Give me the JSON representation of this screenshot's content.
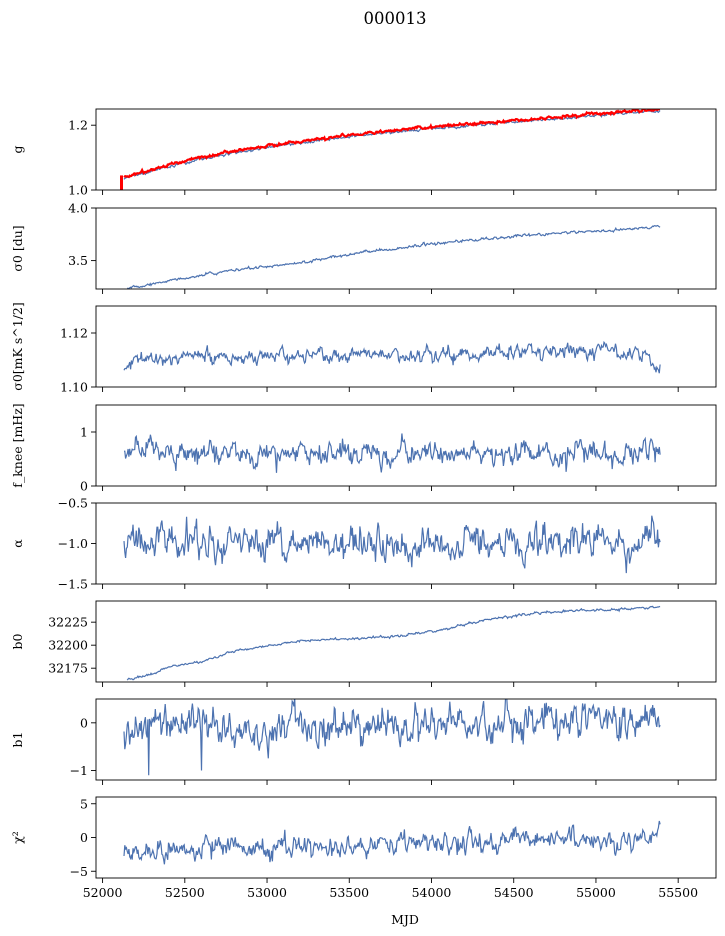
{
  "figure": {
    "title": "000013",
    "xlabel": "MJD"
  },
  "chart_data": [
    {
      "type": "line",
      "ylabel": "g",
      "ylim": [
        1.0,
        1.25
      ],
      "yticks": [
        "1.0",
        "1.2"
      ],
      "ytick_values": [
        1.0,
        1.2
      ],
      "xlim": [
        51960,
        55730
      ],
      "xrange": [
        52130,
        55390
      ],
      "trend": [
        [
          52130,
          1.04
        ],
        [
          52500,
          1.09
        ],
        [
          52800,
          1.12
        ],
        [
          53200,
          1.15
        ],
        [
          53600,
          1.175
        ],
        [
          54000,
          1.195
        ],
        [
          54500,
          1.215
        ],
        [
          55000,
          1.235
        ],
        [
          55390,
          1.25
        ]
      ],
      "noise": 0.002,
      "series": [
        {
          "color": "#4c72b0",
          "offset": -0.005
        },
        {
          "color": "#ff0000",
          "offset": 0.0,
          "spike": {
            "x": 52115,
            "y_low": 1.0,
            "y_high": 1.045
          }
        }
      ]
    },
    {
      "type": "line",
      "ylabel": "σ0 [du]",
      "ylim": [
        3.23,
        4.0
      ],
      "yticks": [
        "3.5",
        "4.0"
      ],
      "ytick_values": [
        3.5,
        4.0
      ],
      "xlim": [
        51960,
        55730
      ],
      "xrange": [
        52150,
        55390
      ],
      "trend": [
        [
          52150,
          3.24
        ],
        [
          52500,
          3.33
        ],
        [
          52800,
          3.41
        ],
        [
          53200,
          3.48
        ],
        [
          53600,
          3.58
        ],
        [
          54000,
          3.66
        ],
        [
          54500,
          3.73
        ],
        [
          55000,
          3.78
        ],
        [
          55390,
          3.82
        ]
      ],
      "noise": 0.006,
      "series": [
        {
          "color": "#4c72b0"
        }
      ]
    },
    {
      "type": "line",
      "ylabel": "σ0[mK s^1/2]",
      "ylim": [
        1.1,
        1.13
      ],
      "yticks": [
        "1.10",
        "1.12"
      ],
      "ytick_values": [
        1.1,
        1.12
      ],
      "xlim": [
        51960,
        55730
      ],
      "xrange": [
        52130,
        55390
      ],
      "trend": [
        [
          52130,
          1.106
        ],
        [
          52200,
          1.111
        ],
        [
          52500,
          1.111
        ],
        [
          53000,
          1.111
        ],
        [
          53500,
          1.112
        ],
        [
          54000,
          1.112
        ],
        [
          54500,
          1.113
        ],
        [
          55000,
          1.113
        ],
        [
          55300,
          1.112
        ],
        [
          55390,
          1.108
        ]
      ],
      "noise": 0.0012,
      "series": [
        {
          "color": "#4c72b0"
        }
      ]
    },
    {
      "type": "line",
      "ylabel": "f_knee [mHz]",
      "ylim": [
        0,
        1.5
      ],
      "yticks": [
        "0",
        "1"
      ],
      "ytick_values": [
        0,
        1
      ],
      "xlim": [
        51960,
        55730
      ],
      "xrange": [
        52130,
        55390
      ],
      "trend": [
        [
          52130,
          0.6
        ],
        [
          55390,
          0.63
        ]
      ],
      "noise": 0.1,
      "series": [
        {
          "color": "#4c72b0"
        }
      ]
    },
    {
      "type": "line",
      "ylabel": "α",
      "ylim": [
        -1.5,
        -0.5
      ],
      "yticks": [
        "−1.5",
        "−1.0",
        "−0.5"
      ],
      "ytick_values": [
        -1.5,
        -1.0,
        -0.5
      ],
      "xlim": [
        51960,
        55730
      ],
      "xrange": [
        52130,
        55390
      ],
      "trend": [
        [
          52130,
          -1.02
        ],
        [
          55390,
          -1.0
        ]
      ],
      "noise": 0.09,
      "series": [
        {
          "color": "#4c72b0"
        }
      ]
    },
    {
      "type": "line",
      "ylabel": "b0",
      "ylim": [
        32160,
        32248
      ],
      "yticks": [
        "32175",
        "32200",
        "32225"
      ],
      "ytick_values": [
        32175,
        32200,
        32225
      ],
      "xlim": [
        51960,
        55730
      ],
      "xrange": [
        52150,
        55390
      ],
      "trend": [
        [
          52150,
          32162
        ],
        [
          52300,
          32168
        ],
        [
          52400,
          32177
        ],
        [
          52600,
          32182
        ],
        [
          52800,
          32193
        ],
        [
          53200,
          32205
        ],
        [
          53500,
          32207
        ],
        [
          53800,
          32210
        ],
        [
          54100,
          32218
        ],
        [
          54400,
          32230
        ],
        [
          54700,
          32236
        ],
        [
          55000,
          32238
        ],
        [
          55390,
          32241
        ]
      ],
      "noise": 0.6,
      "series": [
        {
          "color": "#4c72b0"
        }
      ]
    },
    {
      "type": "line",
      "ylabel": "b1",
      "ylim": [
        -1.2,
        0.5
      ],
      "yticks": [
        "−1",
        "0"
      ],
      "ytick_values": [
        -1,
        0
      ],
      "xlim": [
        51960,
        55730
      ],
      "xrange": [
        52130,
        55390
      ],
      "trend": [
        [
          52130,
          -0.1
        ],
        [
          54000,
          -0.05
        ],
        [
          55390,
          0.05
        ]
      ],
      "noise": 0.17,
      "dips": [
        {
          "x": 52280,
          "y": -1.1
        },
        {
          "x": 52600,
          "y": -1.0
        }
      ],
      "series": [
        {
          "color": "#4c72b0"
        }
      ]
    },
    {
      "type": "line",
      "ylabel": "χ²",
      "ylim": [
        -6,
        6
      ],
      "yticks": [
        "−5",
        "0",
        "5"
      ],
      "ytick_values": [
        -5,
        0,
        5
      ],
      "xlim": [
        51960,
        55730
      ],
      "xrange": [
        52130,
        55390
      ],
      "trend": [
        [
          52130,
          -2.2
        ],
        [
          52500,
          -1.9
        ],
        [
          53000,
          -1.5
        ],
        [
          53500,
          -1.0
        ],
        [
          54000,
          -0.8
        ],
        [
          54500,
          -0.5
        ],
        [
          55000,
          -0.3
        ],
        [
          55390,
          -0.2
        ]
      ],
      "noise": 0.7,
      "series": [
        {
          "color": "#4c72b0"
        }
      ]
    }
  ],
  "x_ticks": [
    "52000",
    "52500",
    "53000",
    "53500",
    "54000",
    "54500",
    "55000",
    "55500"
  ],
  "x_tick_values": [
    52000,
    52500,
    53000,
    53500,
    54000,
    54500,
    55000,
    55500
  ]
}
